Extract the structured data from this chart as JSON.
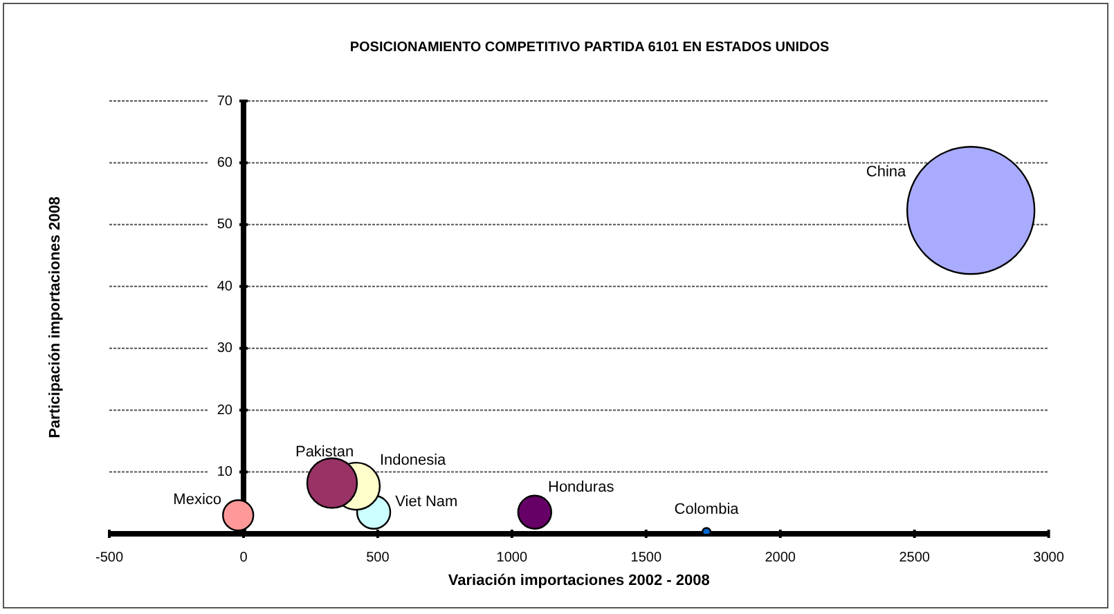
{
  "chart_data": {
    "type": "bubble",
    "title": "POSICIONAMIENTO COMPETITIVO PARTIDA 6101 EN ESTADOS UNIDOS",
    "xlabel": "Variación importaciones 2002 - 2008",
    "ylabel": "Participación importaciones 2008",
    "xlim": [
      -500,
      3000
    ],
    "xticks": [
      -500,
      0,
      500,
      1000,
      1500,
      2000,
      2500,
      3000
    ],
    "ylim": [
      0,
      70
    ],
    "yticks": [
      {
        "value": 0,
        "label": null
      },
      10,
      20,
      30,
      40,
      50,
      60,
      70
    ],
    "grid": "y",
    "legend": false,
    "series": [
      {
        "name": "Mexico",
        "color": "#ff9999",
        "x": [
          -20
        ],
        "values": [
          3.0
        ],
        "sizes": [
          0.057
        ]
      },
      {
        "name": "Pakistan",
        "color": "#993366",
        "x": [
          330
        ],
        "values": [
          8.2
        ],
        "sizes": [
          0.153
        ]
      },
      {
        "name": "Indonesia",
        "color": "#ffffcc",
        "x": [
          420
        ],
        "values": [
          7.7
        ],
        "sizes": [
          0.137
        ]
      },
      {
        "name": "Viet Nam",
        "color": "#ccffff",
        "x": [
          485
        ],
        "values": [
          3.5
        ],
        "sizes": [
          0.068
        ]
      },
      {
        "name": "Honduras",
        "color": "#660066",
        "x": [
          1085
        ],
        "values": [
          3.5
        ],
        "sizes": [
          0.068
        ]
      },
      {
        "name": "Colombia",
        "color": "#0066cc",
        "x": [
          1725
        ],
        "values": [
          0.3
        ],
        "sizes": [
          0.004
        ]
      },
      {
        "name": "China",
        "color": "#a9abff",
        "x": [
          2710
        ],
        "values": [
          52.3
        ],
        "sizes": [
          1
        ]
      }
    ]
  }
}
